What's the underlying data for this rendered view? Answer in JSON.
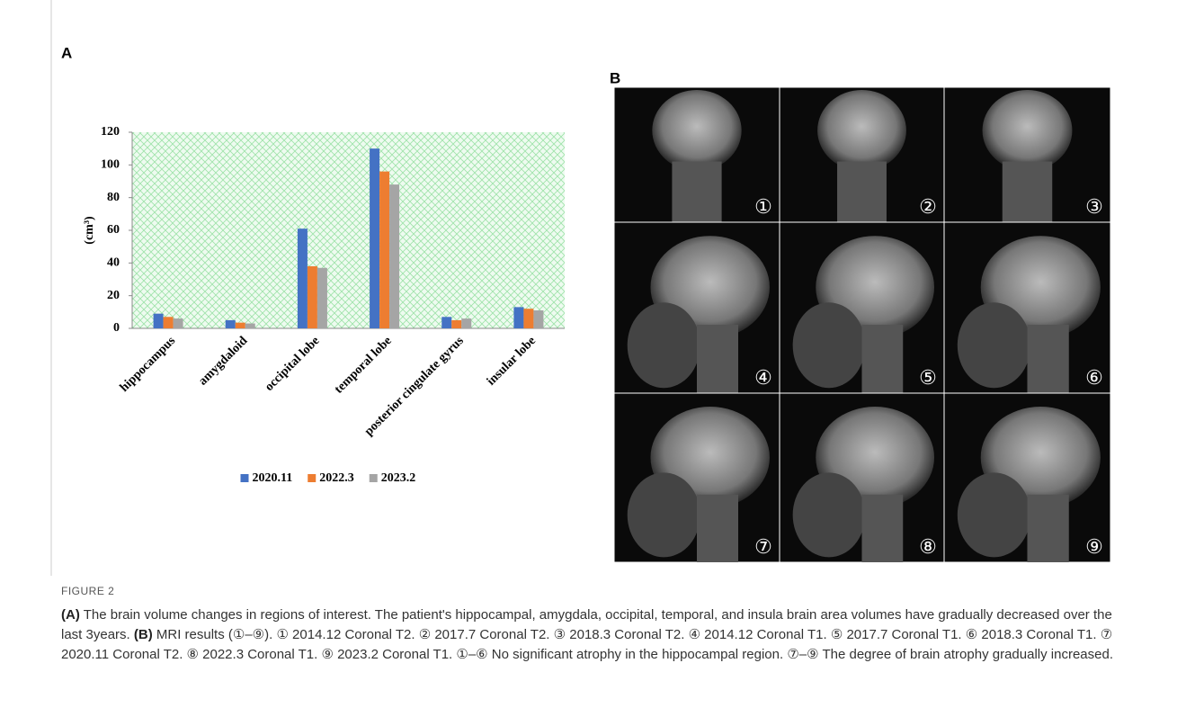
{
  "chart_data": {
    "type": "bar",
    "y_label": "(cm³)",
    "categories": [
      "hippocampus",
      "amygdaloid",
      "occipital lobe",
      "temporal lobe",
      "posterior cingulate gyrus",
      "insular lobe"
    ],
    "series": [
      {
        "name": "2020.11",
        "color": "#4472c4",
        "values": [
          9,
          5,
          61,
          110,
          7,
          13
        ]
      },
      {
        "name": "2022.3",
        "color": "#ed7d31",
        "values": [
          7,
          3.5,
          38,
          96,
          5,
          12
        ]
      },
      {
        "name": "2023.2",
        "color": "#a5a5a5",
        "values": [
          6,
          3,
          37,
          88,
          6,
          11
        ]
      }
    ],
    "ylim": [
      0,
      120
    ],
    "yticks": [
      0,
      20,
      40,
      60,
      80,
      100,
      120
    ],
    "legend": "bottom"
  },
  "panel_labels": [
    "A",
    "B"
  ],
  "mri_labels": [
    "①",
    "②",
    "③",
    "④",
    "⑤",
    "⑥",
    "⑦",
    "⑧",
    "⑨"
  ],
  "caption": {
    "figure_label": "FIGURE 2",
    "a_label": "(A)",
    "a_text": "The brain volume changes in regions of interest. The patient's hippocampal, amygdala, occipital, temporal, and insula brain area volumes have gradually decreased over the last 3years.",
    "b_label": "(B)",
    "b_text": "MRI results (①–⑨). ① 2014.12 Coronal T2. ② 2017.7 Coronal T2. ③ 2018.3 Coronal T2. ④ 2014.12 Coronal T1. ⑤ 2017.7 Coronal T1. ⑥ 2018.3 Coronal T1. ⑦ 2020.11 Coronal T2. ⑧ 2022.3 Coronal T1. ⑨ 2023.2 Coronal T1. ①–⑥ No significant atrophy in the hippocampal region. ⑦–⑨ The degree of brain atrophy gradually increased."
  }
}
